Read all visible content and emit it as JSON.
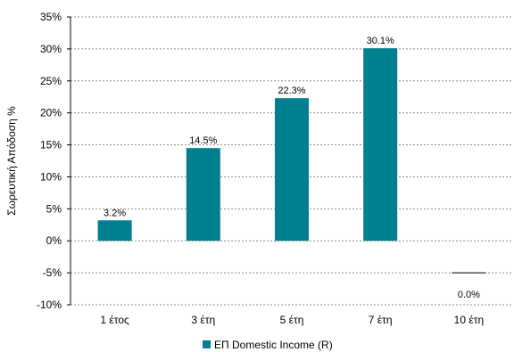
{
  "chart_data": {
    "type": "bar",
    "title": "",
    "xlabel": "",
    "ylabel": "Σωρευτική Απόδοση %",
    "categories": [
      "1 έτος",
      "3 έτη",
      "5 έτη",
      "7 έτη",
      "10 έτη"
    ],
    "series": [
      {
        "name": "ΕΠ Domestic Income (R)",
        "values": [
          3.2,
          14.5,
          22.3,
          30.1,
          0.0
        ],
        "data_labels": [
          "3.2%",
          "14.5%",
          "22.3%",
          "30.1%",
          "0.0%"
        ],
        "color": "#00808F"
      }
    ],
    "ylim": [
      -10,
      35
    ],
    "yticks": [
      -10,
      -5,
      0,
      5,
      10,
      15,
      20,
      25,
      30,
      35
    ],
    "ytick_labels": [
      "-10%",
      "-5%",
      "0%",
      "5%",
      "10%",
      "15%",
      "20%",
      "25%",
      "30%",
      "35%"
    ],
    "grid": true,
    "legend": "bottom"
  }
}
